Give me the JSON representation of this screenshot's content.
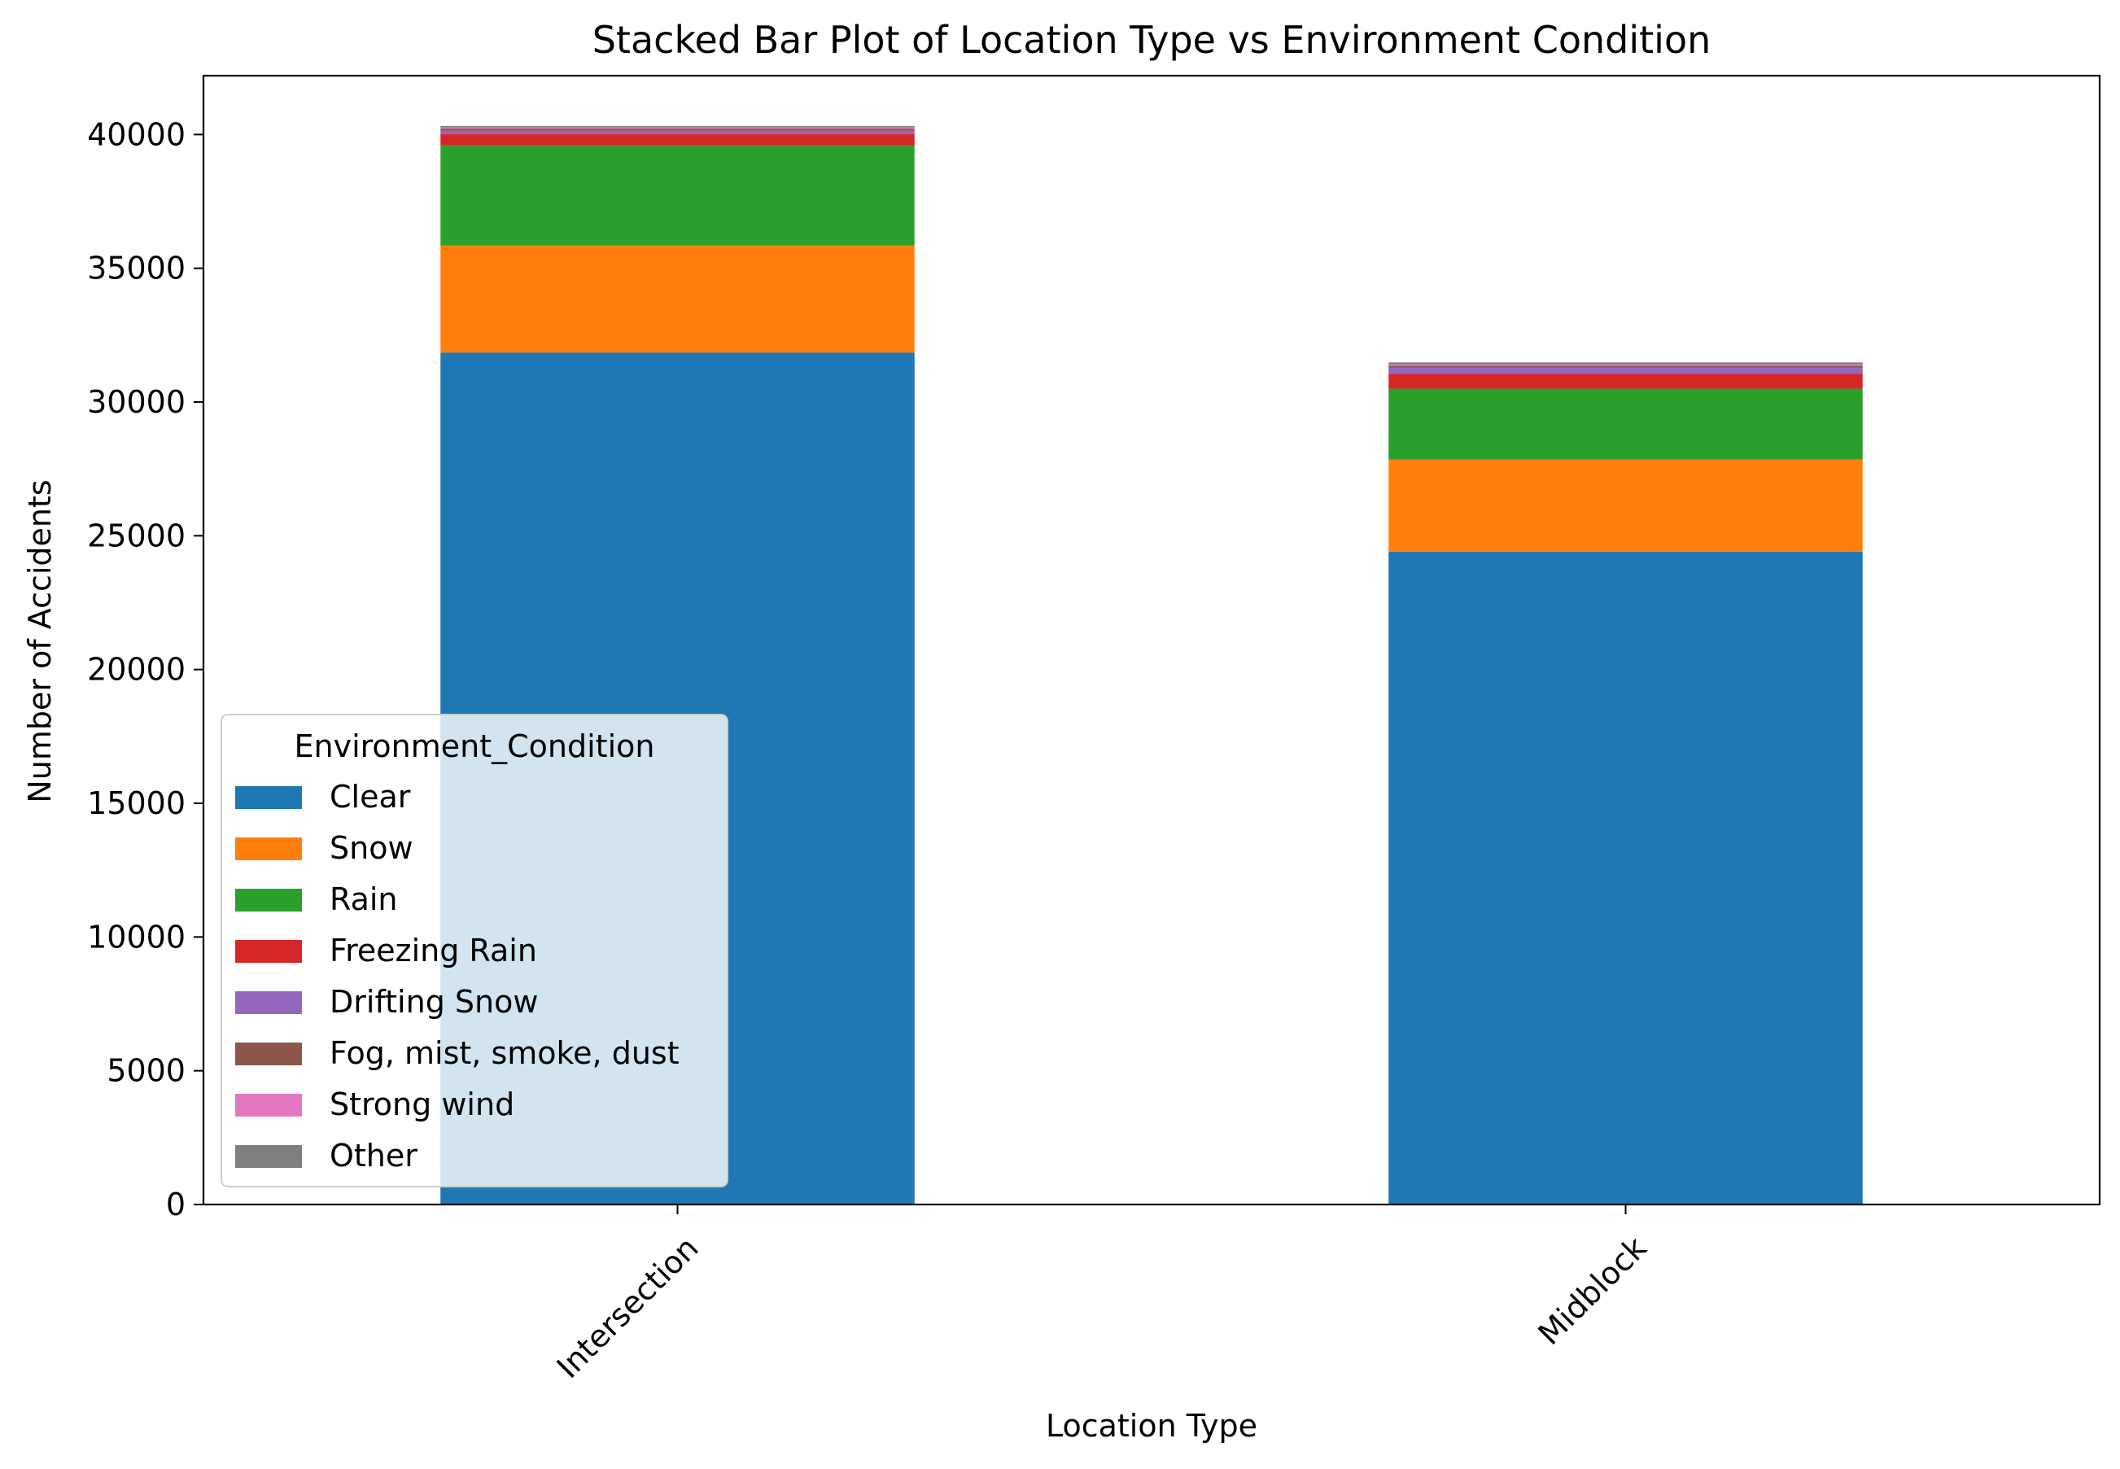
{
  "chart_data": {
    "type": "bar",
    "stacked": true,
    "title": "Stacked Bar Plot of Location Type vs Environment Condition",
    "xlabel": "Location Type",
    "ylabel": "Number of Accidents",
    "categories": [
      "Intersection",
      "Midblock"
    ],
    "ylim": [
      0,
      42200
    ],
    "yticks": [
      0,
      5000,
      10000,
      15000,
      20000,
      25000,
      30000,
      35000,
      40000
    ],
    "grid": false,
    "legend": {
      "title": "Environment_Condition",
      "placement": "lower-left"
    },
    "series": [
      {
        "name": "Clear",
        "color": "#1f77b4",
        "values": [
          31850,
          24400
        ]
      },
      {
        "name": "Snow",
        "color": "#ff7f0e",
        "values": [
          4000,
          3450
        ]
      },
      {
        "name": "Rain",
        "color": "#2ca02c",
        "values": [
          3750,
          2650
        ]
      },
      {
        "name": "Freezing Rain",
        "color": "#d62728",
        "values": [
          420,
          550
        ]
      },
      {
        "name": "Drifting Snow",
        "color": "#9467bd",
        "values": [
          120,
          230
        ]
      },
      {
        "name": "Fog, mist, smoke, dust",
        "color": "#8c564b",
        "values": [
          80,
          80
        ]
      },
      {
        "name": "Strong wind",
        "color": "#e377c2",
        "values": [
          40,
          50
        ]
      },
      {
        "name": "Other",
        "color": "#7f7f7f",
        "values": [
          60,
          70
        ]
      }
    ]
  }
}
